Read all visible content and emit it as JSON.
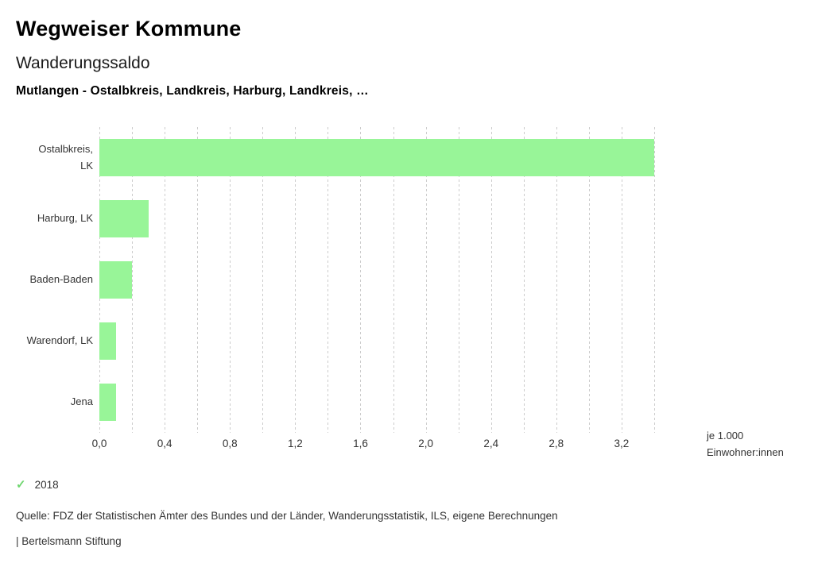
{
  "header": {
    "title": "Wegweiser Kommune",
    "subtitle": "Wanderungssaldo",
    "comparison": "Mutlangen - Ostalbkreis, Landkreis, Harburg, Landkreis, …"
  },
  "chart_data": {
    "type": "bar",
    "orientation": "horizontal",
    "title": "Wanderungssaldo",
    "categories": [
      "Ostalbkreis, LK",
      "Harburg, LK",
      "Baden-Baden",
      "Warendorf, LK",
      "Jena"
    ],
    "label_lines": [
      [
        "Ostalbkreis,",
        "LK"
      ],
      [
        "Harburg, LK"
      ],
      [
        "Baden-Baden"
      ],
      [
        "Warendorf, LK"
      ],
      [
        "Jena"
      ]
    ],
    "values": [
      3.4,
      0.3,
      0.2,
      0.1,
      0.1
    ],
    "series_name": "2018",
    "xlabel": "je 1.000 Einwohner:innen",
    "ylabel": "",
    "xlim": [
      0,
      3.4
    ],
    "grid": true,
    "grid_step": 0.2,
    "x_ticks": [
      "0,0",
      "0,4",
      "0,8",
      "1,2",
      "1,6",
      "2,0",
      "2,4",
      "2,8",
      "3,2"
    ],
    "x_tick_values": [
      0,
      0.4,
      0.8,
      1.2,
      1.6,
      2.0,
      2.4,
      2.8,
      3.2
    ],
    "bar_color": "#98f598",
    "legend_position": "bottom-left"
  },
  "axis_unit": {
    "line1": "je 1.000",
    "line2": "Einwohner:innen"
  },
  "legend": {
    "check_icon": "✓",
    "check_color": "#6fd66f",
    "label": "2018"
  },
  "footer": {
    "source": "Quelle: FDZ der Statistischen Ämter des Bundes und der Länder, Wanderungsstatistik, ILS, eigene Berechnungen",
    "attribution": "| Bertelsmann Stiftung"
  }
}
